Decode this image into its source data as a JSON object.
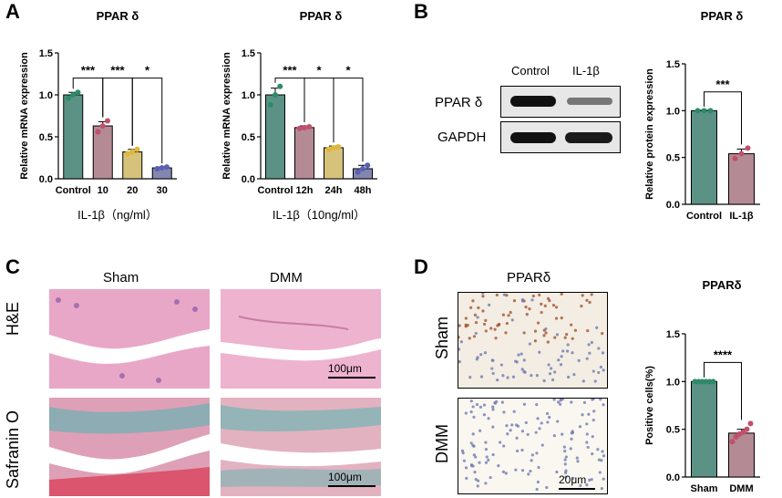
{
  "panels": {
    "a": "A",
    "b": "B",
    "c": "C",
    "d": "D"
  },
  "chart_data": [
    {
      "id": "chartA1",
      "type": "bar",
      "title": "PPAR δ",
      "ylabel": "Relative mRNA expression",
      "xlabel": "IL-1β（ng/ml）",
      "categories": [
        "Control",
        "10",
        "20",
        "30"
      ],
      "values": [
        1.0,
        0.63,
        0.32,
        0.13
      ],
      "errors": [
        0.03,
        0.05,
        0.03,
        0.01
      ],
      "points": [
        [
          0.96,
          1.0,
          1.03
        ],
        [
          0.56,
          0.63,
          0.69
        ],
        [
          0.3,
          0.32,
          0.35
        ],
        [
          0.12,
          0.13,
          0.14
        ]
      ],
      "ylim": [
        0,
        1.5
      ],
      "yticks": [
        "0.0",
        "0.5",
        "1.0",
        "1.5"
      ],
      "colors": [
        "#5b9285",
        "#b48a94",
        "#d6c27a",
        "#8386b0"
      ],
      "dot_colors": [
        "#2e8a6a",
        "#c0506b",
        "#e0b83a",
        "#5a5fb2"
      ],
      "significance": [
        {
          "from": 0,
          "to": 1,
          "label": "***"
        },
        {
          "from": 1,
          "to": 2,
          "label": "***"
        },
        {
          "from": 2,
          "to": 3,
          "label": "*"
        }
      ]
    },
    {
      "id": "chartA2",
      "type": "bar",
      "title": "PPAR δ",
      "ylabel": "Relative mRNA expression",
      "xlabel": "IL-1β（10ng/ml）",
      "categories": [
        "Control",
        "12h",
        "24h",
        "48h"
      ],
      "values": [
        1.0,
        0.61,
        0.37,
        0.12
      ],
      "errors": [
        0.08,
        0.02,
        0.02,
        0.04
      ],
      "points": [
        [
          0.88,
          1.0,
          1.1
        ],
        [
          0.6,
          0.61,
          0.62
        ],
        [
          0.35,
          0.37,
          0.38
        ],
        [
          0.08,
          0.12,
          0.16
        ]
      ],
      "ylim": [
        0,
        1.5
      ],
      "yticks": [
        "0.0",
        "0.5",
        "1.0",
        "1.5"
      ],
      "colors": [
        "#5b9285",
        "#b48a94",
        "#d6c27a",
        "#8386b0"
      ],
      "dot_colors": [
        "#2e8a6a",
        "#c0506b",
        "#e0b83a",
        "#5a5fb2"
      ],
      "significance": [
        {
          "from": 0,
          "to": 1,
          "label": "***"
        },
        {
          "from": 1,
          "to": 2,
          "label": "*"
        },
        {
          "from": 2,
          "to": 3,
          "label": "*"
        }
      ]
    },
    {
      "id": "chartB",
      "type": "bar",
      "title": "PPAR δ",
      "ylabel": "Relative protein expression",
      "xlabel": "",
      "categories": [
        "Control",
        "IL-1β"
      ],
      "values": [
        1.0,
        0.54
      ],
      "errors": [
        0.005,
        0.05
      ],
      "points": [
        [
          1.0,
          1.0,
          1.0
        ],
        [
          0.49,
          0.54,
          0.6
        ]
      ],
      "ylim": [
        0,
        1.5
      ],
      "yticks": [
        "0.0",
        "0.5",
        "1.0",
        "1.5"
      ],
      "colors": [
        "#5b9285",
        "#b48a94"
      ],
      "dot_colors": [
        "#2e8a6a",
        "#c0506b"
      ],
      "significance": [
        {
          "from": 0,
          "to": 1,
          "label": "***"
        }
      ]
    },
    {
      "id": "chartD",
      "type": "bar",
      "title": "PPARδ",
      "ylabel": "Positive cells(%)",
      "xlabel": "",
      "categories": [
        "Sham",
        "DMM"
      ],
      "values": [
        1.0,
        0.46
      ],
      "errors": [
        0.005,
        0.04
      ],
      "points": [
        [
          1.0,
          1.0,
          1.0,
          1.0,
          1.0,
          1.0
        ],
        [
          0.37,
          0.42,
          0.45,
          0.47,
          0.5,
          0.56
        ]
      ],
      "ylim": [
        0,
        1.5
      ],
      "yticks": [
        "0.0",
        "0.5",
        "1.0",
        "1.5"
      ],
      "colors": [
        "#5b9285",
        "#b48a94"
      ],
      "dot_colors": [
        "#2e8a6a",
        "#c0506b"
      ],
      "significance": [
        {
          "from": 0,
          "to": 1,
          "label": "****"
        }
      ]
    }
  ],
  "western": {
    "col_labels": [
      "Control",
      "IL-1β"
    ],
    "row_labels": [
      "PPAR δ",
      "GAPDH"
    ]
  },
  "histology_c": {
    "col_labels": [
      "Sham",
      "DMM"
    ],
    "row_labels": [
      "H&E",
      "Safranin O"
    ],
    "scalebar": "100μm"
  },
  "ihc_d": {
    "title": "PPARδ",
    "row_labels": [
      "Sham",
      "DMM"
    ],
    "scalebar": "20μm"
  }
}
